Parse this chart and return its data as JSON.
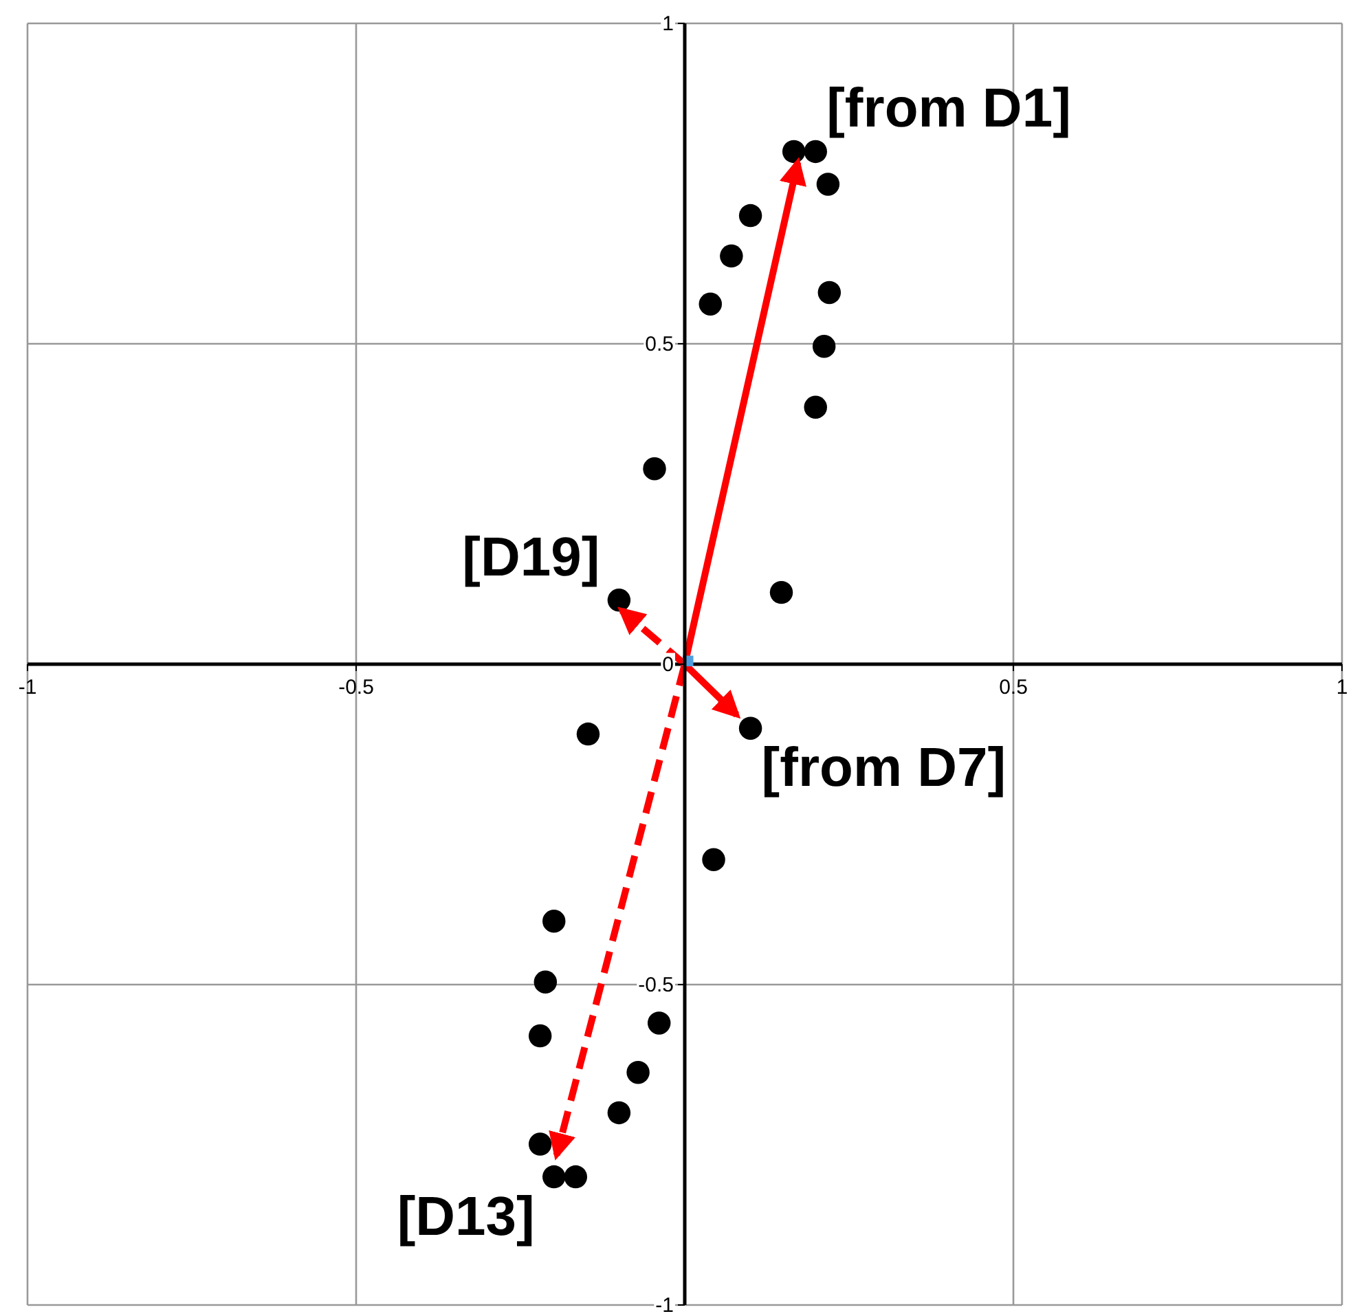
{
  "chart_data": {
    "type": "scatter",
    "xlim": [
      -1,
      1
    ],
    "ylim": [
      -1,
      1
    ],
    "xticks": [
      -1,
      -0.5,
      {
        "value": 0,
        "label": null
      },
      0.5,
      1
    ],
    "yticks": [
      -1,
      -0.5,
      0,
      0.5,
      1
    ],
    "grid": true,
    "marker": "circle",
    "series": [
      {
        "color": "#000000",
        "x": [
          0.166,
          0.199,
          0.218,
          0.1,
          0.071,
          0.22,
          0.039,
          0.212,
          0.199,
          -0.046,
          0.147,
          -0.1,
          0.1,
          -0.147,
          0.044,
          -0.199,
          -0.212,
          -0.22,
          -0.039,
          -0.071,
          -0.1,
          -0.22,
          -0.199,
          -0.166
        ],
        "values": [
          0.8,
          0.8,
          0.749,
          0.7,
          0.637,
          0.58,
          0.562,
          0.496,
          0.401,
          0.305,
          0.112,
          0.1,
          -0.1,
          -0.109,
          -0.305,
          -0.401,
          -0.496,
          -0.58,
          -0.56,
          -0.637,
          -0.7,
          -0.749,
          -0.8,
          -0.8
        ]
      },
      {
        "type": "line",
        "color": "#ff0000",
        "marker": "none",
        "line_style": "solid",
        "x": [
          0,
          0.172
        ],
        "values": [
          0,
          0.783
        ]
      },
      {
        "type": "line",
        "color": "#ff0000",
        "marker": "none",
        "line_style": "dashed",
        "x": [
          0,
          -0.195
        ],
        "values": [
          0,
          -0.766
        ]
      },
      {
        "type": "line",
        "color": "#ff0000",
        "marker": "none",
        "line_style": "solid",
        "x": [
          0,
          0.079
        ],
        "values": [
          0,
          -0.079
        ]
      },
      {
        "type": "line",
        "color": "#ff0000",
        "marker": "none",
        "line_style": "dashed",
        "x": [
          0,
          -0.096
        ],
        "values": [
          0,
          0.084
        ]
      },
      {
        "color": "#4f9fe0",
        "marker": "square",
        "x": [
          0.005
        ],
        "values": [
          0.005
        ]
      }
    ],
    "annotations": [
      {
        "text": "[from D1]",
        "x": 0.199,
        "y": 0.8
      },
      {
        "text": "[D19]",
        "x": -0.1,
        "y": 0.1
      },
      {
        "text": "[from D7]",
        "x": 0.1,
        "y": -0.1
      },
      {
        "text": "[D13]",
        "x": -0.199,
        "y": -0.8
      }
    ]
  }
}
